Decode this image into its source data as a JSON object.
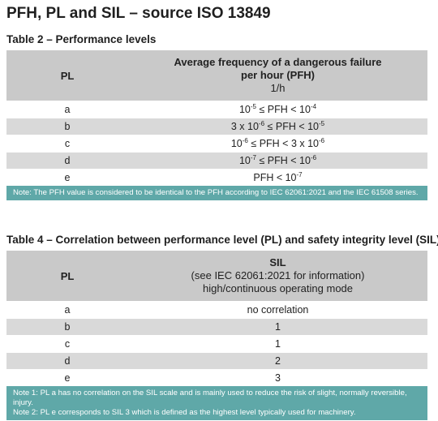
{
  "title": "PFH, PL and SIL – source ISO 13849",
  "table2": {
    "caption": "Table 2 – Performance levels",
    "col1_header": "PL",
    "col2_header_line1": "Average frequency of a dangerous failure",
    "col2_header_line2": "per hour (PFH)",
    "col2_unit": "1/h",
    "rows": [
      {
        "pl": "a",
        "pfh_html": "10<sup>-5</sup> ≤ PFH < 10<sup>-4</sup>",
        "pfh": "10-5 ≤ PFH < 10-4"
      },
      {
        "pl": "b",
        "pfh_html": "3 x 10<sup>-6</sup> ≤ PFH < 10<sup>-5</sup>",
        "pfh": "3 x 10-6 ≤ PFH < 10-5"
      },
      {
        "pl": "c",
        "pfh_html": "10<sup>-6</sup> ≤ PFH < 3 x 10<sup>-6</sup>",
        "pfh": "10-6 ≤ PFH < 3 x 10-6"
      },
      {
        "pl": "d",
        "pfh_html": "10<sup>-7</sup> ≤ PFH < 10<sup>-6</sup>",
        "pfh": "10-7 ≤ PFH < 10-6"
      },
      {
        "pl": "e",
        "pfh_html": "PFH < 10<sup>-7</sup>",
        "pfh": "PFH < 10-7"
      }
    ],
    "note": "Note: The PFH value is considered to be identical to the PFH according to IEC 62061:2021 and the IEC 61508 series."
  },
  "table4": {
    "caption": "Table 4 – Correlation between performance level (PL) and safety integrity level (SIL)",
    "col1_header": "PL",
    "col2_header_line1": "SIL",
    "col2_header_line2": "(see IEC 62061:2021 for information)",
    "col2_header_line3": "high/continuous operating mode",
    "rows": [
      {
        "pl": "a",
        "sil": "no correlation"
      },
      {
        "pl": "b",
        "sil": "1"
      },
      {
        "pl": "c",
        "sil": "1"
      },
      {
        "pl": "d",
        "sil": "2"
      },
      {
        "pl": "e",
        "sil": "3"
      }
    ],
    "note1": "Note 1: PL a has no correlation on the SIL scale and is mainly used to reduce the risk of slight, normally reversible, injury.",
    "note2": "Note 2: PL e corresponds to SIL 3 which is defined as the highest level typically used for machinery."
  },
  "colors": {
    "header_bg": "#c9c9c9",
    "stripe_bg": "#d9d9d9",
    "note_bg": "#5fa8a8"
  }
}
